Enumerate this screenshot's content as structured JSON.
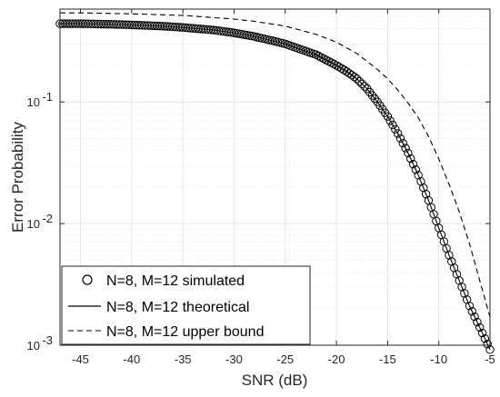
{
  "chart_data": {
    "type": "line",
    "title": "",
    "xlabel": "SNR (dB)",
    "ylabel": "Error Probability",
    "xlim": [
      -47,
      -5
    ],
    "ylim": [
      0.001,
      0.58
    ],
    "yscale": "log",
    "grid": true,
    "minor_grid": true,
    "xticks": [
      -45,
      -40,
      -35,
      -30,
      -25,
      -20,
      -15,
      -10,
      -5
    ],
    "xtick_labels": [
      "-45",
      "-40",
      "-35",
      "-30",
      "-25",
      "-20",
      "-15",
      "-10",
      "-5"
    ],
    "yticks": [
      0.001,
      0.01,
      0.1
    ],
    "ytick_labels": [
      {
        "base": "10",
        "exp": "-3"
      },
      {
        "base": "10",
        "exp": "-2"
      },
      {
        "base": "10",
        "exp": "-1"
      }
    ],
    "legend_position": "bottom-left",
    "colors": {
      "series": "#000000",
      "grid": "#dcdcdc",
      "axis": "#262626"
    },
    "series": [
      {
        "name": "N=8, M=12 simulated",
        "style": "markers",
        "marker": "circle",
        "x": [
          -47,
          -45,
          -42,
          -40,
          -37,
          -35,
          -32,
          -30,
          -28,
          -26,
          -25,
          -24,
          -22,
          -20,
          -19,
          -18,
          -17,
          -16,
          -15,
          -14,
          -13,
          -12,
          -11,
          -10,
          -9,
          -8,
          -7,
          -6,
          -5
        ],
        "y": [
          0.44,
          0.44,
          0.435,
          0.43,
          0.42,
          0.41,
          0.39,
          0.37,
          0.345,
          0.315,
          0.3,
          0.28,
          0.245,
          0.2,
          0.178,
          0.155,
          0.128,
          0.1,
          0.076,
          0.055,
          0.038,
          0.025,
          0.0155,
          0.0092,
          0.0055,
          0.0034,
          0.0021,
          0.0014,
          0.00092
        ]
      },
      {
        "name": "N=8, M=12 theoretical",
        "style": "solid",
        "x": [
          -47,
          -45,
          -42,
          -40,
          -37,
          -35,
          -32,
          -30,
          -28,
          -26,
          -25,
          -24,
          -22,
          -20,
          -19,
          -18,
          -17,
          -16,
          -15,
          -14,
          -13,
          -12,
          -11,
          -10,
          -9,
          -8,
          -7,
          -6,
          -5
        ],
        "y": [
          0.44,
          0.44,
          0.435,
          0.43,
          0.42,
          0.41,
          0.39,
          0.37,
          0.345,
          0.315,
          0.3,
          0.28,
          0.245,
          0.2,
          0.178,
          0.155,
          0.128,
          0.1,
          0.076,
          0.055,
          0.038,
          0.025,
          0.0155,
          0.0092,
          0.0055,
          0.0034,
          0.0021,
          0.0014,
          0.00092
        ]
      },
      {
        "name": "N=8, M=12 upper bound",
        "style": "dashed",
        "x": [
          -47,
          -45,
          -40,
          -35,
          -30,
          -28,
          -25,
          -22,
          -20,
          -18,
          -16,
          -15,
          -14,
          -13,
          -12,
          -11,
          -10,
          -9,
          -8,
          -7,
          -6,
          -5
        ],
        "y": [
          0.54,
          0.54,
          0.53,
          0.515,
          0.48,
          0.46,
          0.42,
          0.36,
          0.31,
          0.25,
          0.185,
          0.155,
          0.125,
          0.098,
          0.074,
          0.052,
          0.034,
          0.021,
          0.0125,
          0.0068,
          0.0034,
          0.0017
        ]
      }
    ]
  }
}
